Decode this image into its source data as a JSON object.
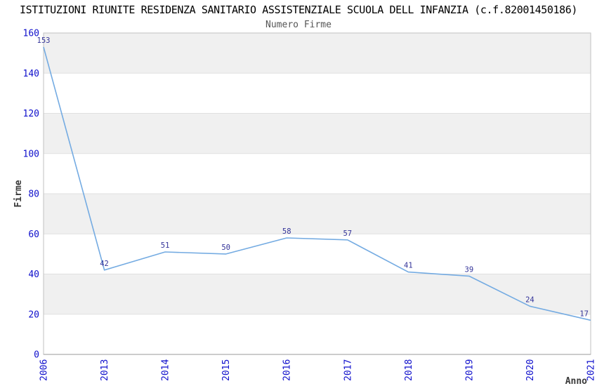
{
  "chart_data": {
    "type": "line",
    "title": "ISTITUZIONI RIUNITE RESIDENZA SANITARIO ASSISTENZIALE SCUOLA DELL INFANZIA (c.f.82001450186)",
    "subtitle": "Numero Firme",
    "xlabel": "Anno",
    "ylabel": "Firme",
    "categories": [
      "2006",
      "2013",
      "2014",
      "2015",
      "2016",
      "2017",
      "2018",
      "2019",
      "2020",
      "2021"
    ],
    "values": [
      153,
      42,
      51,
      50,
      58,
      57,
      41,
      39,
      24,
      17
    ],
    "ylim": [
      0,
      160
    ],
    "ytick_step": 20,
    "grid": true,
    "legend_position": "none",
    "band_pattern": "alternating horizontal gray bands of 20 units, gray on 20-40, 60-80, 100-120, 140-160",
    "colors": {
      "line": "#74abe2",
      "point_label": "#333399",
      "tick_label": "#0f0fcc",
      "band": "#f0f0f0",
      "gridline": "#e0e0e0",
      "plot_border": "#c2c2c2",
      "axis_line": "#9a9a9a",
      "title": "#000000",
      "subtitle": "#555555",
      "axis_title": "#3a3a3a"
    }
  }
}
